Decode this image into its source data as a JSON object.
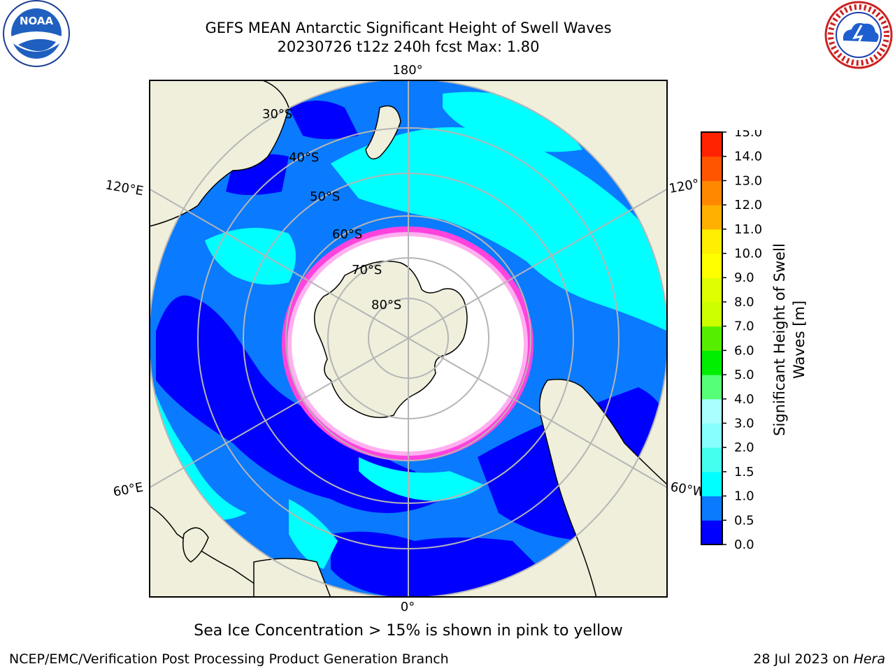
{
  "header": {
    "title_line1": "GEFS MEAN Antarctic Significant Height of Swell Waves",
    "title_line2": "20230726 t12z 240h fcst   Max: 1.80"
  },
  "logos": {
    "left": "noaa-logo",
    "left_text": "NOAA",
    "right": "nws-logo"
  },
  "map": {
    "projection": "south-polar-stereographic",
    "meridian_labels": [
      {
        "name": "meridian-label-180",
        "text": "180°"
      },
      {
        "name": "meridian-label-120e",
        "text": "120°E"
      },
      {
        "name": "meridian-label-120w",
        "text": "120°"
      },
      {
        "name": "meridian-label-60e",
        "text": "60°E"
      },
      {
        "name": "meridian-label-60w",
        "text": "60°W"
      },
      {
        "name": "meridian-label-0",
        "text": "0°"
      }
    ],
    "parallel_labels": [
      {
        "name": "parallel-label-30s",
        "text": "30°S"
      },
      {
        "name": "parallel-label-40s",
        "text": "40°S"
      },
      {
        "name": "parallel-label-50s",
        "text": "50°S"
      },
      {
        "name": "parallel-label-60s",
        "text": "60°S"
      },
      {
        "name": "parallel-label-70s",
        "text": "70°S"
      },
      {
        "name": "parallel-label-80s",
        "text": "80°S"
      }
    ],
    "colors": {
      "land": "#efefdc",
      "ocean_dark": "#0000ff",
      "ocean_mid": "#0a7aff",
      "ocean_light": "#00ffff",
      "ice_white": "#ffffff",
      "ice_edge": "#ff44dd",
      "gridline": "#b5b5b5"
    }
  },
  "colorbar": {
    "label_line1": "Significant Height of Swell",
    "label_line2": "Waves [m]",
    "ticks": [
      "0.0",
      "0.5",
      "1.0",
      "1.5",
      "2.0",
      "3.0",
      "4.0",
      "5.0",
      "6.0",
      "7.0",
      "8.0",
      "9.0",
      "10.0",
      "11.0",
      "12.0",
      "13.0",
      "14.0",
      "15.0"
    ],
    "colors": [
      "#0000ff",
      "#0a7aff",
      "#00ffff",
      "#44ffee",
      "#88ffff",
      "#aaffff",
      "#55ff77",
      "#00ee00",
      "#55ee00",
      "#ccff00",
      "#ddff00",
      "#ffff00",
      "#ffee00",
      "#ffb000",
      "#ff8800",
      "#ff5500",
      "#ff2200",
      "#ff0000"
    ]
  },
  "footer": {
    "note": "Sea Ice Concentration > 15% is shown in pink to yellow",
    "credit_left": "NCEP/EMC/Verification Post Processing Product Generation Branch",
    "credit_right_date": "28 Jul 2023 on ",
    "credit_right_host": "Hera"
  }
}
